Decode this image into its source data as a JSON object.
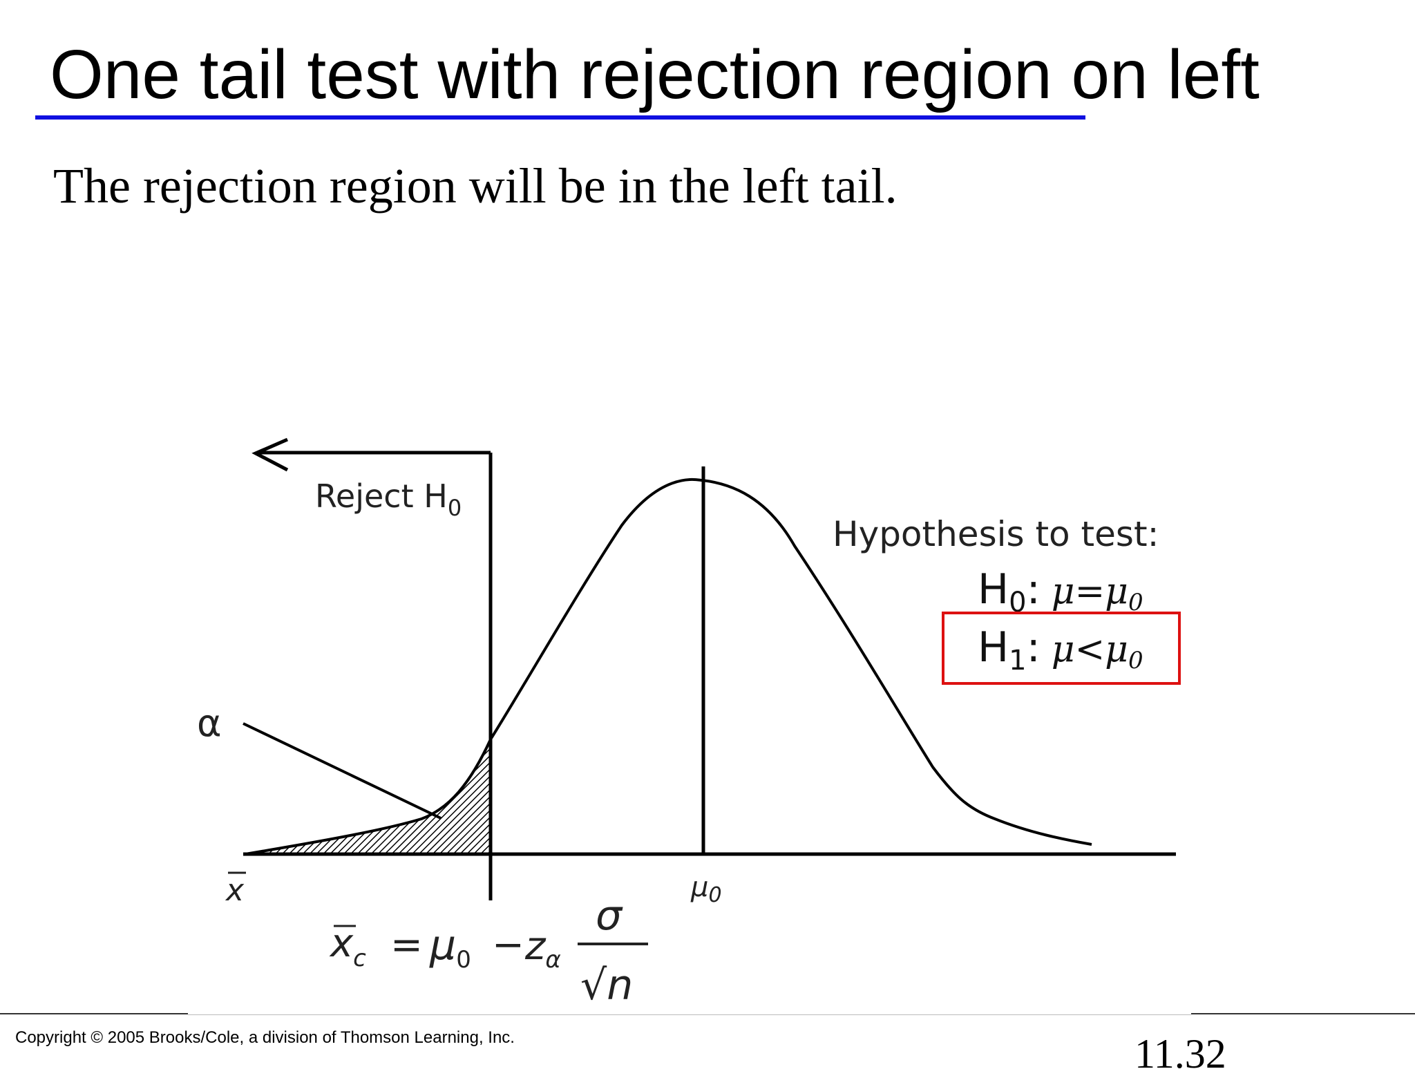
{
  "slide": {
    "title": "One tail test with rejection region on left",
    "subtitle": "The rejection region will be in the left tail.",
    "copyright": "Copyright © 2005 Brooks/Cole, a division of Thomson Learning, Inc.",
    "page_number": "11.32"
  },
  "diagram": {
    "reject_label": "Reject H",
    "reject_sub": "0",
    "alpha_label": "α",
    "xbar_label": "x",
    "mu0_label": "μ",
    "mu0_sub": "0",
    "hypothesis_title": "Hypothesis to test:",
    "h0": {
      "letter": "H",
      "sub": "0",
      "colon": ":",
      "expr": "μ=μ",
      "expr_sub": "0"
    },
    "h1": {
      "letter": "H",
      "sub": "1",
      "colon": ":",
      "expr": "μ<μ",
      "expr_sub": "0"
    },
    "formula": {
      "lhs": "x",
      "lhs_sub": "c",
      "equals": "=",
      "mu": "μ",
      "mu_sub": "0",
      "minus": "−",
      "z": "z",
      "z_sub": "α",
      "numerator": "σ",
      "denominator": "√n"
    },
    "colors": {
      "highlight_box": "#dd1111",
      "title_underline": "#1010e0"
    }
  }
}
